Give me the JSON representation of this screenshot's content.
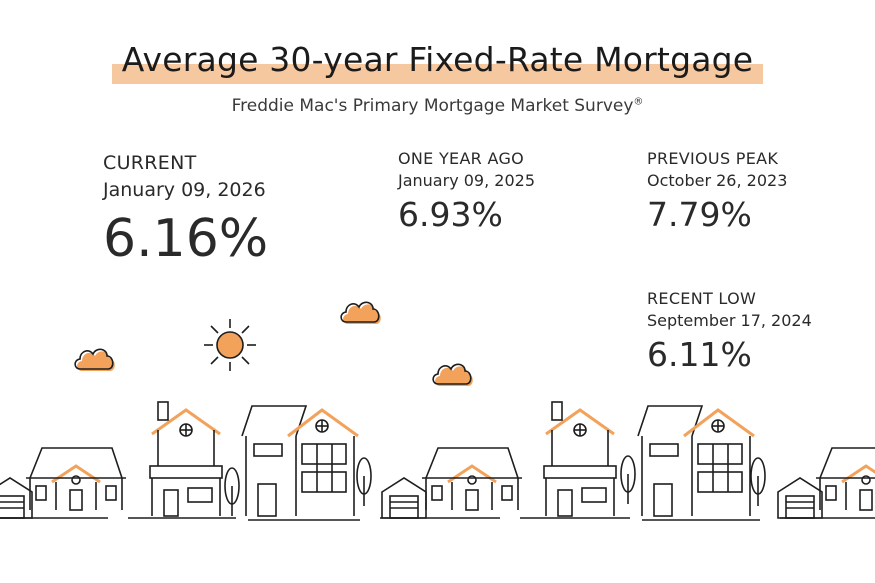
{
  "header": {
    "title": "Average 30-year Fixed-Rate Mortgage",
    "subtitle": "Freddie Mac's Primary Mortgage Market Survey",
    "subtitle_mark": "®"
  },
  "stats": {
    "current": {
      "label": "CURRENT",
      "date": "January 09, 2026",
      "value": "6.16%"
    },
    "one_year_ago": {
      "label": "ONE YEAR AGO",
      "date": "January 09, 2025",
      "value": "6.93%"
    },
    "previous_peak": {
      "label": "PREVIOUS PEAK",
      "date": "October 26, 2023",
      "value": "7.79%"
    },
    "recent_low": {
      "label": "RECENT LOW",
      "date": "September 17, 2024",
      "value": "6.11%"
    }
  },
  "colors": {
    "accent": "#f2a25a",
    "highlight": "#f6c8a0",
    "ink": "#1e1e1e",
    "background": "#ffffff"
  },
  "illustration": {
    "icons": [
      "sun-icon",
      "cloud-icon",
      "house-icon",
      "garage-icon",
      "tree-icon"
    ]
  }
}
